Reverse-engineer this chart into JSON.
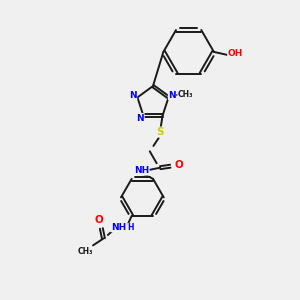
{
  "bg_color": "#f0f0f0",
  "bond_color": "#1a1a1a",
  "N_color": "#0000ff",
  "O_color": "#ff0000",
  "S_color": "#cccc00",
  "C_color": "#1a1a1a",
  "font_size": 6.5,
  "line_width": 1.4,
  "xlim": [
    0,
    10
  ],
  "ylim": [
    0,
    10
  ]
}
